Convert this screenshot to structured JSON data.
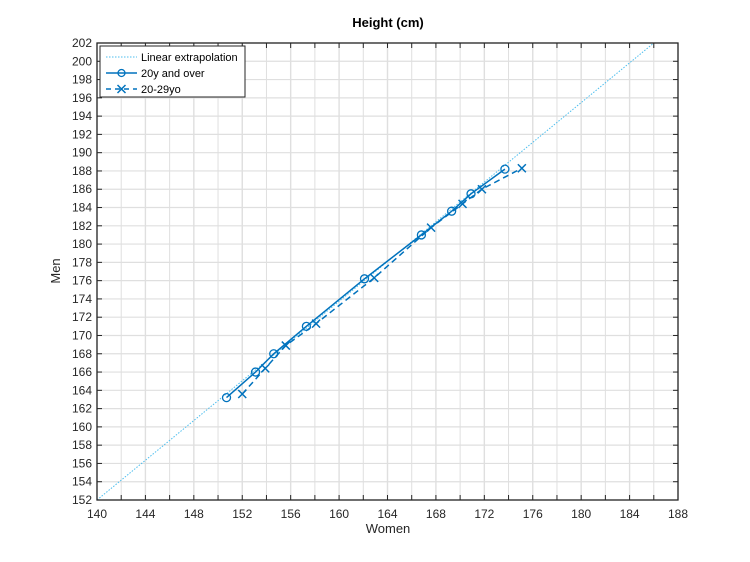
{
  "chart_data": {
    "type": "line",
    "title": "Height (cm)",
    "xlabel": "Women",
    "ylabel": "Men",
    "xlim": [
      140,
      188
    ],
    "ylim": [
      152,
      202
    ],
    "xticks": [
      140,
      144,
      148,
      152,
      156,
      160,
      164,
      168,
      172,
      176,
      180,
      184,
      188
    ],
    "yticks": [
      152,
      154,
      156,
      158,
      160,
      162,
      164,
      166,
      168,
      170,
      172,
      174,
      176,
      178,
      180,
      182,
      184,
      186,
      188,
      190,
      192,
      194,
      196,
      198,
      200,
      202
    ],
    "grid": true,
    "legend_position": "top-left",
    "series": [
      {
        "name": "Linear extrapolation",
        "style": "dotted",
        "marker": "none",
        "color": "#4dbeee",
        "x": [
          140,
          186
        ],
        "y": [
          152,
          202
        ]
      },
      {
        "name": "20y and over",
        "style": "solid",
        "marker": "o",
        "color": "#0072bd",
        "x": [
          150.7,
          153.1,
          154.6,
          157.3,
          162.1,
          166.8,
          169.3,
          170.9,
          173.7
        ],
        "y": [
          163.2,
          166.0,
          168.0,
          171.0,
          176.2,
          181.0,
          183.6,
          185.5,
          188.2
        ]
      },
      {
        "name": "20-29yo",
        "style": "dashed",
        "marker": "x",
        "color": "#0072bd",
        "x": [
          152.0,
          153.9,
          155.6,
          158.1,
          162.9,
          167.6,
          170.2,
          171.8,
          175.1
        ],
        "y": [
          163.6,
          166.4,
          168.9,
          171.3,
          176.3,
          181.8,
          184.4,
          186.0,
          188.3
        ]
      }
    ]
  },
  "colors": {
    "grid": "#dfdfdf",
    "axis": "#262626",
    "primary": "#0072bd",
    "extrapolation": "#4dbeee"
  }
}
